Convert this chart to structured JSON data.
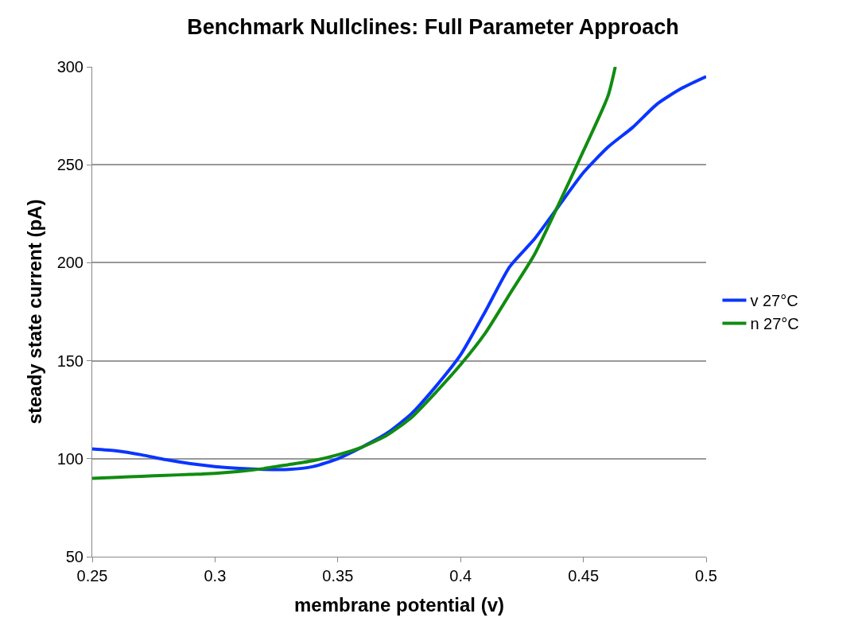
{
  "chart_data": {
    "type": "line",
    "title": "Benchmark Nullclines: Full Parameter Approach",
    "xlabel": "membrane potential (v)",
    "ylabel": "steady state current (pA)",
    "x": [
      0.25,
      0.26,
      0.27,
      0.28,
      0.29,
      0.3,
      0.31,
      0.32,
      0.33,
      0.34,
      0.35,
      0.36,
      0.37,
      0.38,
      0.39,
      0.4,
      0.41,
      0.42,
      0.43,
      0.44,
      0.45,
      0.46,
      0.47,
      0.48,
      0.49,
      0.5
    ],
    "series": [
      {
        "name": "v 27°C",
        "color": "#0a35ff",
        "values": [
          105,
          104,
          102,
          99.5,
          97.5,
          96,
          95,
          94.5,
          94.5,
          96,
          100,
          106,
          113,
          123,
          137,
          153,
          175,
          198,
          212,
          229,
          246,
          259,
          269,
          281,
          289,
          295
        ]
      },
      {
        "name": "n 27°C",
        "color": "#118c11",
        "x": [
          0.25,
          0.26,
          0.27,
          0.28,
          0.29,
          0.3,
          0.31,
          0.32,
          0.33,
          0.34,
          0.35,
          0.36,
          0.37,
          0.38,
          0.39,
          0.4,
          0.41,
          0.42,
          0.43,
          0.44,
          0.45,
          0.46,
          0.463
        ],
        "values": [
          90,
          90.5,
          91,
          91.5,
          92,
          92.5,
          93.5,
          95,
          97,
          99,
          102,
          106,
          112,
          121,
          134,
          148,
          164,
          184,
          204,
          230,
          257,
          285,
          300
        ]
      }
    ],
    "xlim": [
      0.25,
      0.5
    ],
    "xticks": [
      0.25,
      0.3,
      0.35,
      0.4,
      0.45,
      0.5
    ],
    "ylim": [
      50,
      300
    ],
    "yticks": [
      50,
      100,
      150,
      200,
      250,
      300
    ],
    "grid": "y",
    "legend": "right",
    "marker": "none",
    "line_style": "solid"
  }
}
